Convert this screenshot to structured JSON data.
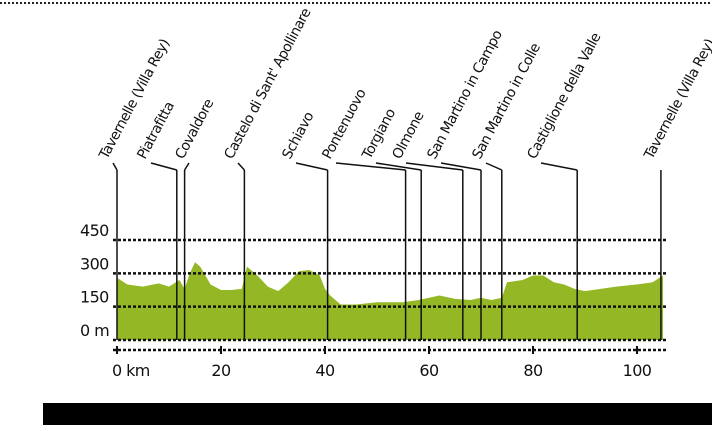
{
  "chart_data": {
    "type": "area",
    "x": [
      0,
      2,
      5,
      8,
      10,
      12,
      13,
      14,
      15,
      16,
      18,
      20,
      22,
      24,
      25,
      27,
      29,
      31,
      33,
      35,
      37,
      39,
      40,
      41,
      43,
      46,
      50,
      55,
      58,
      60,
      62,
      65,
      68,
      70,
      72,
      74,
      75,
      78,
      80,
      82,
      84,
      86,
      88,
      90,
      93,
      96,
      100,
      103,
      105
    ],
    "series": [
      {
        "color": "#94b825",
        "values": [
          280,
          250,
          240,
          255,
          240,
          270,
          230,
          300,
          350,
          330,
          250,
          225,
          225,
          230,
          330,
          290,
          240,
          220,
          260,
          310,
          315,
          290,
          230,
          200,
          160,
          160,
          170,
          170,
          180,
          190,
          200,
          185,
          180,
          190,
          180,
          190,
          260,
          270,
          290,
          290,
          260,
          250,
          230,
          220,
          230,
          240,
          250,
          260,
          290
        ]
      }
    ],
    "xlim": [
      0,
      105
    ],
    "ylim": [
      0,
      450
    ],
    "xticks": [
      {
        "value": 0,
        "label": "0 km"
      },
      20,
      40,
      60,
      80,
      100
    ],
    "yticks": [
      {
        "value": 0,
        "label": "0 m"
      },
      150,
      300,
      450
    ],
    "grid": true,
    "places": [
      {
        "label": "Tavernelle (Villa Rey)",
        "x": 0
      },
      {
        "label": "Piatrafitta",
        "x": 11.5
      },
      {
        "label": "Covaldore",
        "x": 13
      },
      {
        "label": "Castelo di Sant' Apollinare",
        "x": 24.5
      },
      {
        "label": "Schiavo",
        "x": 40.5
      },
      {
        "label": "Pontenuovo",
        "x": 55.5
      },
      {
        "label": "Torgiano",
        "x": 58.5
      },
      {
        "label": "Olmone",
        "x": 66.5
      },
      {
        "label": "San Martino in Campo",
        "x": 70
      },
      {
        "label": "San Martino in Colle",
        "x": 74
      },
      {
        "label": "Castiglione della Valle",
        "x": 88.5
      },
      {
        "label": "Tavernelle (Villa Rey)",
        "x": 104.6
      }
    ]
  }
}
